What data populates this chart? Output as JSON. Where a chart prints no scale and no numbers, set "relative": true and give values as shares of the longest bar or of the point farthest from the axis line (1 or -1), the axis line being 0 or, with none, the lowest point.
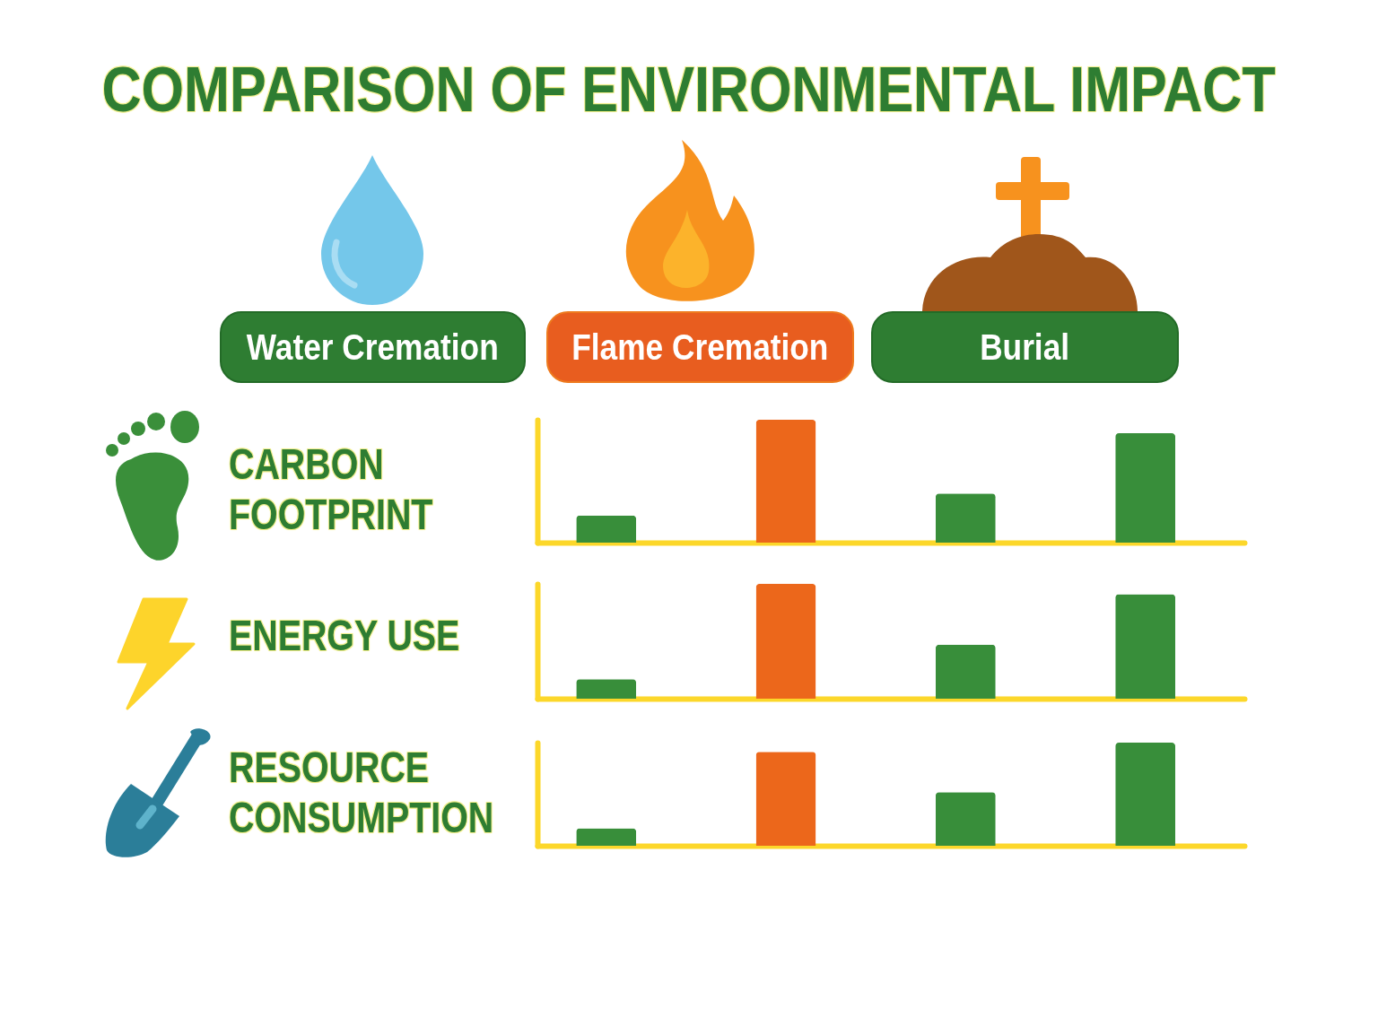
{
  "chart_data": [
    {
      "type": "other",
      "title": "COMPARISON OF ENVIRONMENTAL IMPACT",
      "annotations": [
        "Water Cremation",
        "Flame Cremation",
        "Burial"
      ]
    },
    {
      "type": "bar",
      "title": "CARBON FOOTPRINT",
      "categories": [
        null,
        null,
        null,
        null
      ],
      "values": [
        0.22,
        1,
        0.4,
        0.89
      ],
      "colors": [
        "#388e3a",
        "#ec671b",
        "#388e3a",
        "#388e3a"
      ],
      "relative": true
    },
    {
      "type": "bar",
      "title": "ENERGY USE",
      "categories": [
        null,
        null,
        null,
        null
      ],
      "values": [
        0.17,
        1,
        0.47,
        0.91
      ],
      "colors": [
        "#388e3a",
        "#ec671b",
        "#388e3a",
        "#388e3a"
      ],
      "relative": true
    },
    {
      "type": "bar",
      "title": "RESOURCE CONSUMPTION",
      "categories": [
        null,
        null,
        null,
        null
      ],
      "values": [
        0.17,
        0.91,
        0.52,
        1
      ],
      "colors": [
        "#388e3a",
        "#ec671b",
        "#388e3a",
        "#388e3a"
      ],
      "relative": true
    }
  ]
}
